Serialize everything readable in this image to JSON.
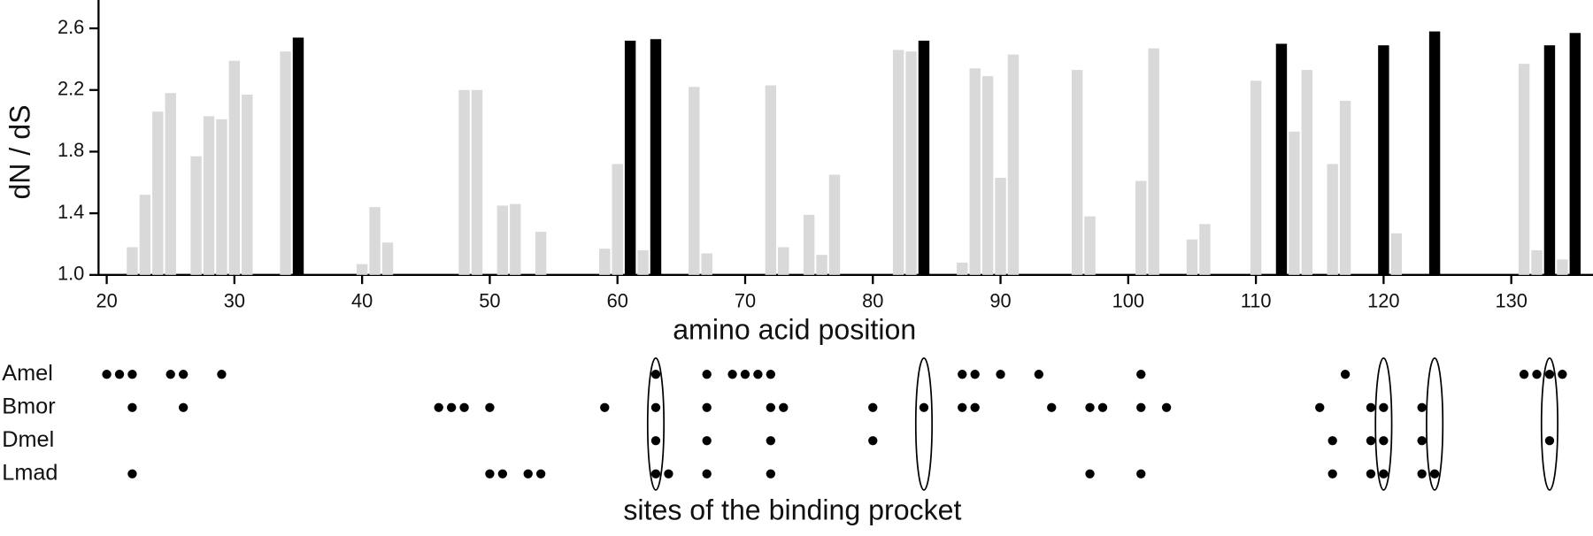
{
  "chart_data": [
    {
      "type": "bar",
      "x_label": "amino acid position",
      "y_label": "dN / dS",
      "x": [
        22,
        23,
        24,
        25,
        27,
        28,
        29,
        30,
        31,
        34,
        35,
        40,
        41,
        42,
        48,
        49,
        51,
        52,
        54,
        59,
        60,
        61,
        62,
        63,
        66,
        67,
        72,
        73,
        75,
        76,
        77,
        82,
        83,
        84,
        87,
        88,
        89,
        90,
        91,
        96,
        97,
        101,
        102,
        105,
        106,
        110,
        112,
        113,
        114,
        116,
        117,
        120,
        121,
        124,
        131,
        132,
        133,
        134,
        135
      ],
      "values": [
        1.18,
        1.52,
        2.06,
        2.18,
        1.77,
        2.03,
        2.01,
        2.39,
        2.17,
        2.45,
        2.54,
        1.07,
        1.44,
        1.21,
        2.2,
        2.2,
        1.45,
        1.46,
        1.28,
        1.17,
        1.72,
        2.52,
        1.16,
        2.53,
        2.22,
        1.14,
        2.23,
        1.18,
        1.39,
        1.13,
        1.65,
        2.46,
        2.45,
        2.52,
        1.08,
        2.34,
        2.29,
        1.63,
        2.43,
        2.33,
        1.38,
        1.61,
        2.47,
        1.23,
        1.33,
        2.26,
        2.5,
        1.93,
        2.33,
        1.72,
        2.13,
        2.49,
        1.27,
        2.58,
        2.37,
        1.16,
        2.49,
        1.1,
        2.57
      ],
      "colors": [
        "#d9d9d9",
        "#d9d9d9",
        "#d9d9d9",
        "#d9d9d9",
        "#d9d9d9",
        "#d9d9d9",
        "#d9d9d9",
        "#d9d9d9",
        "#d9d9d9",
        "#d9d9d9",
        "#000000",
        "#d9d9d9",
        "#d9d9d9",
        "#d9d9d9",
        "#d9d9d9",
        "#d9d9d9",
        "#d9d9d9",
        "#d9d9d9",
        "#d9d9d9",
        "#d9d9d9",
        "#d9d9d9",
        "#000000",
        "#d9d9d9",
        "#000000",
        "#d9d9d9",
        "#d9d9d9",
        "#d9d9d9",
        "#d9d9d9",
        "#d9d9d9",
        "#d9d9d9",
        "#d9d9d9",
        "#d9d9d9",
        "#d9d9d9",
        "#000000",
        "#d9d9d9",
        "#d9d9d9",
        "#d9d9d9",
        "#d9d9d9",
        "#d9d9d9",
        "#d9d9d9",
        "#d9d9d9",
        "#d9d9d9",
        "#d9d9d9",
        "#d9d9d9",
        "#d9d9d9",
        "#d9d9d9",
        "#000000",
        "#d9d9d9",
        "#d9d9d9",
        "#d9d9d9",
        "#d9d9d9",
        "#000000",
        "#d9d9d9",
        "#000000",
        "#d9d9d9",
        "#d9d9d9",
        "#000000",
        "#d9d9d9",
        "#000000"
      ],
      "xlim": [
        19.36,
        136.4
      ],
      "ylim": [
        1.0,
        2.784
      ],
      "xticks": [
        20,
        30,
        40,
        50,
        60,
        70,
        80,
        90,
        100,
        110,
        120,
        130
      ],
      "yticks": [
        {
          "value": 1.0,
          "label": "1.0"
        },
        {
          "value": 1.4,
          "label": "1.4"
        },
        {
          "value": 1.8,
          "label": "1.8"
        },
        {
          "value": 2.2,
          "label": "2.2"
        },
        {
          "value": 2.6,
          "label": "2.6"
        }
      ]
    },
    {
      "type": "dot",
      "title": "sites of the binding procket",
      "xlim": [
        19.36,
        136.4
      ],
      "species": [
        {
          "name": "Amel",
          "sites": [
            20,
            21,
            22,
            25,
            26,
            29,
            63,
            67,
            69,
            70,
            71,
            72,
            87,
            88,
            90,
            93,
            101,
            117,
            131,
            132,
            133,
            134
          ]
        },
        {
          "name": "Bmor",
          "sites": [
            22,
            26,
            46,
            47,
            48,
            50,
            59,
            63,
            67,
            72,
            73,
            80,
            84,
            87,
            88,
            94,
            97,
            98,
            101,
            103,
            115,
            119,
            120,
            123
          ]
        },
        {
          "name": "Dmel",
          "sites": [
            63,
            67,
            72,
            80,
            116,
            119,
            120,
            123,
            133
          ]
        },
        {
          "name": "Lmad",
          "sites": [
            22,
            50,
            51,
            53,
            54,
            63,
            64,
            67,
            72,
            97,
            101,
            116,
            119,
            120,
            123,
            124
          ]
        }
      ],
      "circled": [
        63,
        84,
        120,
        124,
        133
      ]
    }
  ]
}
